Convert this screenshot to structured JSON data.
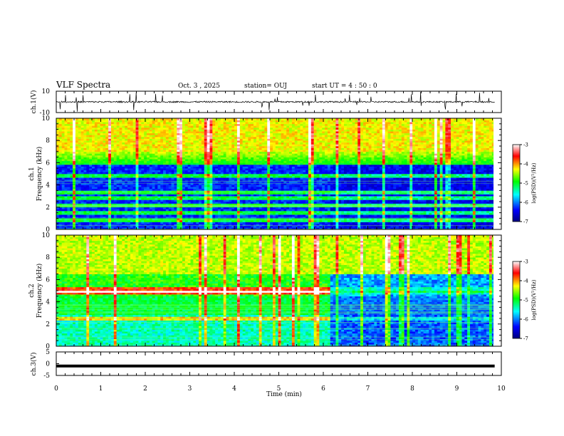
{
  "header": {
    "title": "VLF Spectra",
    "date": "Oct. 3 , 2025",
    "station": "station= OUJ",
    "start_ut": "start UT =  4 : 50 : 0"
  },
  "chart_data": [
    {
      "type": "line",
      "name": "ch1-waveform",
      "ylabel": "ch.1(V)",
      "ylim": [
        -10,
        10
      ],
      "ytick_labels": [
        "10",
        "-10"
      ],
      "baseline": 0,
      "xlim": [
        0,
        9.85
      ]
    },
    {
      "type": "heatmap",
      "name": "ch1-spectrogram",
      "ylabel_line1": "ch.1",
      "ylabel_line2": "Frequency (kHz)",
      "ylim": [
        0,
        10
      ],
      "ytick_labels": [
        "0",
        "2",
        "4",
        "6",
        "8",
        "10"
      ],
      "xlim": [
        0,
        9.85
      ],
      "colorbar": {
        "label": "log(PSD)(V²/Hz)",
        "range": [
          -7,
          -3
        ],
        "tick_labels": [
          "-3",
          "-4",
          "-5",
          "-6",
          "-7"
        ]
      },
      "bands_khz": [
        0.8,
        1.5,
        2.2,
        2.8,
        3.3,
        4.8
      ]
    },
    {
      "type": "heatmap",
      "name": "ch2-spectrogram",
      "ylabel_line1": "ch.2",
      "ylabel_line2": "Frequency (kHz)",
      "ylim": [
        0,
        10
      ],
      "ytick_labels": [
        "0",
        "2",
        "4",
        "6",
        "8",
        "10"
      ],
      "xlim": [
        0,
        9.85
      ],
      "colorbar": {
        "label": "log(PSD)(V²/Hz)",
        "range": [
          -7,
          -3
        ],
        "tick_labels": [
          "-3",
          "-4",
          "-5",
          "-6",
          "-7"
        ]
      },
      "bands_khz": [
        2.5,
        4.8,
        5.1
      ]
    },
    {
      "type": "line",
      "name": "ch3-waveform",
      "ylabel": "ch.3(V)",
      "ylim": [
        -5,
        5
      ],
      "ytick_labels": [
        "5",
        "0",
        "-5"
      ],
      "x": [
        0,
        9.85
      ],
      "y": [
        -1,
        -1
      ]
    }
  ],
  "xaxis": {
    "label": "Time (min)",
    "tick_labels": [
      "0",
      "1",
      "2",
      "3",
      "4",
      "5",
      "6",
      "7",
      "8",
      "9",
      "10"
    ],
    "xlim": [
      0,
      10
    ]
  },
  "colors": {
    "colormap": [
      "#00007f",
      "#0000ff",
      "#00ffff",
      "#00ff00",
      "#ffff00",
      "#ff0000",
      "#ffffff"
    ]
  }
}
